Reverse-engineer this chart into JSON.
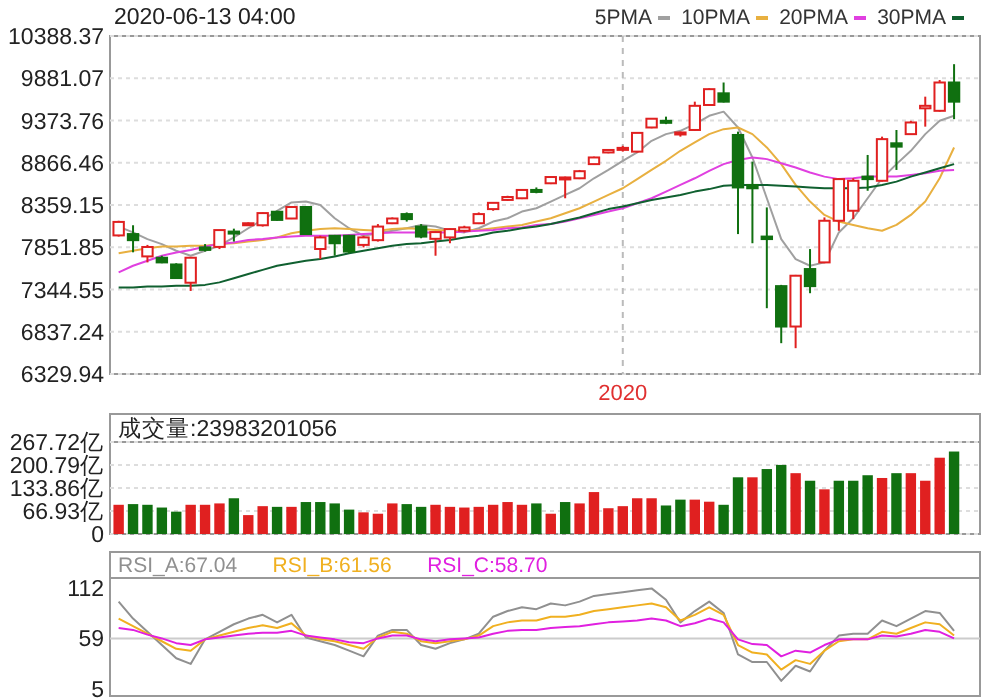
{
  "chart_data": [
    {
      "type": "candlestick",
      "title": "2020-06-13 04:00",
      "categories": [
        null,
        null,
        null,
        null,
        null,
        null,
        null,
        null,
        null,
        null,
        null,
        null,
        null,
        null,
        null,
        null,
        null,
        null,
        null,
        null,
        null,
        null,
        null,
        null,
        null,
        null,
        null,
        null,
        null,
        null,
        null,
        null,
        null,
        null,
        null,
        "2020",
        null,
        null,
        null,
        null,
        null,
        null,
        null,
        null,
        null,
        null,
        null,
        null,
        null,
        null,
        null,
        null,
        null,
        null,
        null,
        null,
        null,
        null,
        null
      ],
      "ohlc": [
        [
          7994,
          8170,
          7980,
          8156
        ],
        [
          8010,
          8116,
          7791,
          7937
        ],
        [
          7742,
          7880,
          7670,
          7855
        ],
        [
          7726,
          7750,
          7660,
          7670
        ],
        [
          7645,
          7660,
          7480,
          7482
        ],
        [
          7426,
          7730,
          7327,
          7726
        ],
        [
          7850,
          7890,
          7800,
          7820
        ],
        [
          7856,
          8060,
          7830,
          8058
        ],
        [
          8040,
          8075,
          7920,
          8020
        ],
        [
          8120,
          8150,
          8110,
          8140
        ],
        [
          8116,
          8270,
          8100,
          8262
        ],
        [
          8278,
          8290,
          8170,
          8180
        ],
        [
          8197,
          8345,
          8190,
          8335
        ],
        [
          8335,
          8345,
          8000,
          8010
        ],
        [
          7831,
          7990,
          7710,
          7970
        ],
        [
          7990,
          8000,
          7750,
          7900
        ],
        [
          7990,
          8000,
          7780,
          7800
        ],
        [
          7880,
          7990,
          7850,
          7970
        ],
        [
          7937,
          8130,
          7920,
          8100
        ],
        [
          8140,
          8210,
          8130,
          8197
        ],
        [
          8250,
          8270,
          8160,
          8190
        ],
        [
          8100,
          8130,
          7960,
          7980
        ],
        [
          7953,
          8040,
          7750,
          8034
        ],
        [
          7970,
          8075,
          7900,
          8070
        ],
        [
          8050,
          8110,
          8030,
          8090
        ],
        [
          8140,
          8270,
          8130,
          8250
        ],
        [
          8310,
          8390,
          8290,
          8385
        ],
        [
          8420,
          8470,
          8410,
          8455
        ],
        [
          8440,
          8545,
          8430,
          8540
        ],
        [
          8540,
          8570,
          8500,
          8520
        ],
        [
          8620,
          8700,
          8610,
          8695
        ],
        [
          8680,
          8700,
          8440,
          8690
        ],
        [
          8680,
          8780,
          8670,
          8765
        ],
        [
          8850,
          8940,
          8840,
          8930
        ],
        [
          8990,
          9030,
          8980,
          9020
        ],
        [
          9030,
          9070,
          9000,
          9045
        ],
        [
          9000,
          9230,
          8990,
          9225
        ],
        [
          9290,
          9400,
          9280,
          9395
        ],
        [
          9370,
          9420,
          9330,
          9355
        ],
        [
          9210,
          9240,
          9180,
          9230
        ],
        [
          9260,
          9600,
          9250,
          9550
        ],
        [
          9560,
          9760,
          9550,
          9750
        ],
        [
          9700,
          9830,
          9590,
          9600
        ],
        [
          9200,
          9240,
          8010,
          8570
        ],
        [
          8600,
          8880,
          7900,
          8560
        ],
        [
          7980,
          8330,
          7120,
          7950
        ],
        [
          7385,
          7400,
          6700,
          6900
        ],
        [
          6900,
          7520,
          6640,
          7510
        ],
        [
          7590,
          7830,
          7300,
          7385
        ],
        [
          7670,
          8210,
          7660,
          8170
        ],
        [
          8170,
          8680,
          8050,
          8670
        ],
        [
          8290,
          8680,
          8190,
          8650
        ],
        [
          8700,
          8960,
          8530,
          8670
        ],
        [
          8650,
          9180,
          8640,
          9150
        ],
        [
          9100,
          9260,
          8780,
          9060
        ],
        [
          9210,
          9370,
          9200,
          9350
        ],
        [
          9520,
          9660,
          9300,
          9550
        ],
        [
          9490,
          9860,
          9480,
          9830
        ],
        [
          9830,
          10050,
          9390,
          9600
        ]
      ],
      "colors": [
        "#e02020",
        "#107010",
        "#e02020",
        "#107010",
        "#107010",
        "#e02020",
        "#107010",
        "#e02020",
        "#107010",
        "#e02020",
        "#e02020",
        "#107010",
        "#e02020",
        "#107010",
        "#e02020",
        "#107010",
        "#107010",
        "#e02020",
        "#e02020",
        "#e02020",
        "#107010",
        "#107010",
        "#e02020",
        "#e02020",
        "#e02020",
        "#e02020",
        "#e02020",
        "#e02020",
        "#e02020",
        "#107010",
        "#e02020",
        "#e02020",
        "#e02020",
        "#e02020",
        "#e02020",
        "#e02020",
        "#e02020",
        "#e02020",
        "#107010",
        "#e02020",
        "#e02020",
        "#e02020",
        "#107010",
        "#107010",
        "#107010",
        "#107010",
        "#107010",
        "#e02020",
        "#107010",
        "#e02020",
        "#e02020",
        "#e02020",
        "#107010",
        "#e02020",
        "#107010",
        "#e02020",
        "#e02020",
        "#e02020",
        "#107010"
      ],
      "series": [
        {
          "name": "5PMA",
          "type": "line",
          "color": "#a0a0a0",
          "values": [
            8100,
            8030,
            7950,
            7890,
            7810,
            7750,
            7810,
            7870,
            7970,
            8080,
            8180,
            8290,
            8390,
            8400,
            8360,
            8200,
            8080,
            7990,
            8020,
            8050,
            8080,
            8120,
            8100,
            8050,
            8030,
            8080,
            8160,
            8200,
            8280,
            8320,
            8400,
            8480,
            8560,
            8680,
            8780,
            8890,
            8990,
            9130,
            9210,
            9250,
            9330,
            9430,
            9480,
            9290,
            8930,
            8440,
            7950,
            7710,
            7630,
            7670,
            8030,
            8200,
            8440,
            8680,
            8850,
            9010,
            9210,
            9370,
            9430
          ]
        },
        {
          "name": "10PMA",
          "type": "line",
          "color": "#e8b040",
          "values": [
            7780,
            7810,
            7840,
            7860,
            7860,
            7870,
            7870,
            7890,
            7900,
            7920,
            7940,
            7970,
            8020,
            8050,
            8070,
            8080,
            8070,
            8060,
            8050,
            8070,
            8080,
            8070,
            8060,
            8050,
            8050,
            8060,
            8080,
            8100,
            8120,
            8160,
            8200,
            8260,
            8320,
            8400,
            8480,
            8560,
            8670,
            8780,
            8890,
            9010,
            9110,
            9210,
            9270,
            9290,
            9210,
            9050,
            8850,
            8600,
            8400,
            8240,
            8160,
            8120,
            8080,
            8050,
            8120,
            8240,
            8400,
            8680,
            9050
          ]
        },
        {
          "name": "20PMA",
          "type": "line",
          "color": "#e040e0",
          "values": [
            7550,
            7630,
            7690,
            7750,
            7790,
            7820,
            7860,
            7890,
            7910,
            7940,
            7950,
            7970,
            7980,
            7990,
            7990,
            7990,
            8000,
            8010,
            8020,
            8030,
            8030,
            8030,
            8030,
            8030,
            8040,
            8050,
            8060,
            8080,
            8090,
            8120,
            8130,
            8160,
            8200,
            8240,
            8280,
            8320,
            8380,
            8440,
            8520,
            8600,
            8680,
            8770,
            8850,
            8900,
            8930,
            8910,
            8860,
            8810,
            8750,
            8700,
            8670,
            8680,
            8700,
            8700,
            8700,
            8720,
            8740,
            8770,
            8780
          ]
        },
        {
          "name": "30PMA",
          "type": "line",
          "color": "#106030",
          "values": [
            7370,
            7370,
            7380,
            7380,
            7390,
            7390,
            7400,
            7430,
            7480,
            7530,
            7580,
            7630,
            7660,
            7690,
            7710,
            7740,
            7780,
            7810,
            7840,
            7870,
            7890,
            7900,
            7920,
            7940,
            7970,
            7990,
            8030,
            8050,
            8080,
            8100,
            8130,
            8170,
            8210,
            8260,
            8310,
            8340,
            8380,
            8420,
            8450,
            8480,
            8520,
            8550,
            8590,
            8600,
            8600,
            8600,
            8590,
            8580,
            8570,
            8560,
            8560,
            8560,
            8570,
            8600,
            8640,
            8700,
            8750,
            8800,
            8850
          ]
        }
      ],
      "ylim": [
        6329.94,
        10388.37
      ],
      "yticks": [
        6329.94,
        6837.24,
        7344.55,
        7851.85,
        8359.15,
        8866.46,
        9373.76,
        9881.07,
        10388.37
      ],
      "grid": true,
      "legend": "top right"
    },
    {
      "type": "bar",
      "title": "成交量:23983201056",
      "categories": [
        null,
        null,
        null,
        null,
        null,
        null,
        null,
        null,
        null,
        null,
        null,
        null,
        null,
        null,
        null,
        null,
        null,
        null,
        null,
        null,
        null,
        null,
        null,
        null,
        null,
        null,
        null,
        null,
        null,
        null,
        null,
        null,
        null,
        null,
        null,
        null,
        null,
        null,
        null,
        null,
        null,
        null,
        null,
        null,
        null,
        null,
        null,
        null,
        null,
        null,
        null,
        null,
        null,
        null,
        null,
        null,
        null,
        null,
        null
      ],
      "values": [
        85,
        87,
        85,
        77,
        65,
        85,
        85,
        89,
        104,
        55,
        81,
        79,
        79,
        93,
        93,
        89,
        71,
        63,
        59,
        89,
        87,
        79,
        85,
        79,
        77,
        79,
        85,
        93,
        85,
        89,
        59,
        93,
        89,
        122,
        75,
        81,
        104,
        104,
        83,
        100,
        100,
        94,
        85,
        165,
        165,
        189,
        201,
        177,
        155,
        130,
        155,
        155,
        171,
        163,
        177,
        177,
        155,
        222,
        240
      ],
      "colors": [
        "#e02020",
        "#107010",
        "#107010",
        "#107010",
        "#107010",
        "#e02020",
        "#e02020",
        "#e02020",
        "#107010",
        "#e02020",
        "#e02020",
        "#107010",
        "#e02020",
        "#107010",
        "#107010",
        "#107010",
        "#107010",
        "#e02020",
        "#e02020",
        "#e02020",
        "#107010",
        "#107010",
        "#e02020",
        "#e02020",
        "#e02020",
        "#e02020",
        "#e02020",
        "#e02020",
        "#e02020",
        "#107010",
        "#e02020",
        "#107010",
        "#e02020",
        "#e02020",
        "#e02020",
        "#e02020",
        "#e02020",
        "#e02020",
        "#107010",
        "#107010",
        "#e02020",
        "#e02020",
        "#107010",
        "#107010",
        "#e02020",
        "#107010",
        "#107010",
        "#e02020",
        "#107010",
        "#e02020",
        "#107010",
        "#107010",
        "#107010",
        "#e02020",
        "#107010",
        "#e02020",
        "#e02020",
        "#e02020",
        "#107010"
      ],
      "ylim": [
        0,
        267.72
      ],
      "yticks": [
        {
          "value": 0,
          "label": "0"
        },
        {
          "value": 66.93,
          "label": "66.93亿"
        },
        {
          "value": 133.86,
          "label": "133.86亿"
        },
        {
          "value": 200.79,
          "label": "200.79亿"
        },
        {
          "value": 267.72,
          "label": "267.72亿"
        }
      ],
      "grid": "y"
    },
    {
      "type": "line",
      "categories": [
        null,
        null,
        null,
        null,
        null,
        null,
        null,
        null,
        null,
        null,
        null,
        null,
        null,
        null,
        null,
        null,
        null,
        null,
        null,
        null,
        null,
        null,
        null,
        null,
        null,
        null,
        null,
        null,
        null,
        null,
        null,
        null,
        null,
        null,
        null,
        null,
        null,
        null,
        null,
        null,
        null,
        null,
        null,
        null,
        null,
        null,
        null,
        null,
        null,
        null,
        null,
        null,
        null,
        null,
        null,
        null,
        null,
        null,
        null
      ],
      "series": [
        {
          "name": "RSI_A:67.04",
          "color": "#909090",
          "values": [
            98,
            80,
            66,
            52,
            38,
            32,
            58,
            66,
            74,
            80,
            84,
            76,
            84,
            60,
            56,
            52,
            46,
            40,
            62,
            68,
            68,
            52,
            48,
            54,
            58,
            64,
            82,
            88,
            92,
            90,
            96,
            94,
            98,
            104,
            106,
            108,
            110,
            112,
            100,
            76,
            88,
            98,
            86,
            42,
            34,
            34,
            14,
            30,
            24,
            46,
            62,
            64,
            64,
            78,
            72,
            80,
            88,
            86,
            67
          ]
        },
        {
          "name": "RSI_B:61.56",
          "color": "#f0b020",
          "values": [
            80,
            72,
            64,
            56,
            48,
            46,
            58,
            62,
            66,
            70,
            73,
            70,
            75,
            62,
            58,
            56,
            52,
            48,
            60,
            66,
            64,
            56,
            54,
            56,
            58,
            62,
            72,
            76,
            78,
            78,
            82,
            82,
            84,
            88,
            90,
            92,
            94,
            96,
            92,
            78,
            84,
            92,
            84,
            52,
            44,
            42,
            26,
            36,
            32,
            46,
            56,
            58,
            58,
            66,
            64,
            70,
            76,
            74,
            62
          ]
        },
        {
          "name": "RSI_C:58.70",
          "color": "#e020e0",
          "values": [
            70,
            68,
            63,
            59,
            54,
            52,
            58,
            60,
            62,
            64,
            65,
            65,
            67,
            62,
            60,
            58,
            55,
            54,
            59,
            62,
            62,
            58,
            56,
            58,
            59,
            60,
            64,
            67,
            68,
            68,
            70,
            71,
            72,
            74,
            76,
            77,
            78,
            80,
            78,
            72,
            75,
            80,
            76,
            58,
            53,
            52,
            40,
            46,
            44,
            52,
            58,
            58,
            58,
            62,
            61,
            64,
            68,
            66,
            59
          ]
        }
      ],
      "ylim": [
        -2,
        123
      ],
      "yticks": [
        5,
        59,
        112
      ],
      "ref_lines": [
        {
          "axis": "y",
          "value": 59,
          "color": "#cccccc"
        }
      ],
      "legend": "top left"
    }
  ]
}
